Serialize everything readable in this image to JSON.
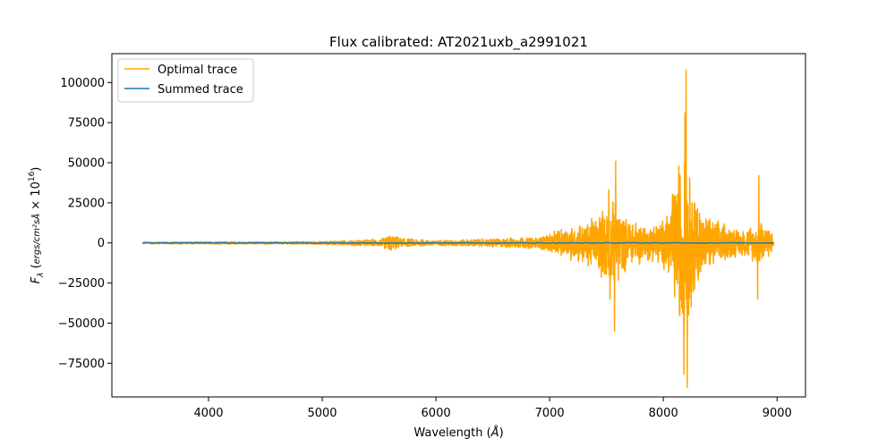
{
  "chart_data": {
    "type": "line",
    "title": "Flux calibrated: AT2021uxb_a2991021",
    "xlabel": "Wavelength (Å)",
    "ylabel": "F_λ (ergs / (cm² s Å) × 10^16)",
    "xlim": [
      3150,
      9250
    ],
    "ylim": [
      -96000,
      118000
    ],
    "x_ticks": [
      4000,
      5000,
      6000,
      7000,
      8000,
      9000
    ],
    "x_tick_labels": [
      "4000",
      "5000",
      "6000",
      "7000",
      "8000",
      "9000"
    ],
    "y_ticks": [
      -75000,
      -50000,
      -25000,
      0,
      25000,
      50000,
      75000,
      100000
    ],
    "y_tick_labels": [
      "−75000",
      "−50000",
      "−25000",
      "0",
      "25000",
      "50000",
      "75000",
      "100000"
    ],
    "grid": false,
    "legend_position": "top-left",
    "x_range": [
      3420,
      8970
    ],
    "series": [
      {
        "name": "Optimal trace",
        "color": "#ffa500",
        "envelope": [
          {
            "x": 3420,
            "amp": 700
          },
          {
            "x": 4000,
            "amp": 900
          },
          {
            "x": 4500,
            "amp": 800
          },
          {
            "x": 5000,
            "amp": 1100
          },
          {
            "x": 5500,
            "amp": 2500
          },
          {
            "x": 5600,
            "amp": 6000
          },
          {
            "x": 5700,
            "amp": 3000
          },
          {
            "x": 6000,
            "amp": 1800
          },
          {
            "x": 6500,
            "amp": 3000
          },
          {
            "x": 6900,
            "amp": 4000
          },
          {
            "x": 7200,
            "amp": 12000
          },
          {
            "x": 7400,
            "amp": 18000
          },
          {
            "x": 7550,
            "amp": 30000
          },
          {
            "x": 7700,
            "amp": 16000
          },
          {
            "x": 7900,
            "amp": 12000
          },
          {
            "x": 8050,
            "amp": 20000
          },
          {
            "x": 8150,
            "amp": 60000
          },
          {
            "x": 8250,
            "amp": 45000
          },
          {
            "x": 8350,
            "amp": 20000
          },
          {
            "x": 8550,
            "amp": 12000
          },
          {
            "x": 8700,
            "amp": 8000
          },
          {
            "x": 8850,
            "amp": 16000
          },
          {
            "x": 8970,
            "amp": 6000
          }
        ],
        "peaks": [
          {
            "x": 7580,
            "y": 51000
          },
          {
            "x": 7570,
            "y": -55000
          },
          {
            "x": 8200,
            "y": 108000
          },
          {
            "x": 8210,
            "y": -90000
          },
          {
            "x": 8190,
            "y": 81000
          },
          {
            "x": 8180,
            "y": -82000
          },
          {
            "x": 8840,
            "y": 42000
          },
          {
            "x": 8830,
            "y": -35000
          },
          {
            "x": 7520,
            "y": 33000
          },
          {
            "x": 7530,
            "y": -35000
          }
        ]
      },
      {
        "name": "Summed trace",
        "color": "#1f77b4",
        "values_approx": "near zero across full range"
      }
    ]
  }
}
